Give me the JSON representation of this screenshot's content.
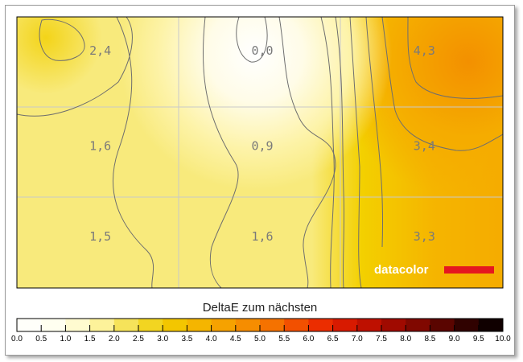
{
  "chart_data": {
    "type": "heatmap",
    "title": "",
    "legend_title": "DeltaE zum nächsten",
    "colorbar_ticks": [
      "0.0",
      "0.5",
      "1.0",
      "1.5",
      "2.0",
      "2.5",
      "3.0",
      "3.5",
      "4.0",
      "4.5",
      "5.0",
      "5.5",
      "6.0",
      "6.5",
      "7.0",
      "7.5",
      "8.0",
      "8.5",
      "9.0",
      "9.5",
      "10.0"
    ],
    "colorbar_colors": [
      "#fffffa",
      "#fffff0",
      "#fffbd0",
      "#fdf29a",
      "#f6e35a",
      "#f2d521",
      "#f3c600",
      "#f5b500",
      "#f6a200",
      "#f68d00",
      "#f57200",
      "#f25000",
      "#eb2d00",
      "#d81a00",
      "#be1000",
      "#a00a00",
      "#800800",
      "#5a0500",
      "#300200",
      "#100000"
    ],
    "grid": {
      "rows": 3,
      "cols": 3
    },
    "cells": [
      [
        "2,4",
        "0,0",
        "4,3"
      ],
      [
        "1,6",
        "0,9",
        "3,4"
      ],
      [
        "1,5",
        "1,6",
        "3,3"
      ]
    ],
    "values": [
      [
        2.4,
        0.0,
        4.3
      ],
      [
        1.6,
        0.9,
        3.4
      ],
      [
        1.5,
        1.6,
        3.3
      ]
    ],
    "brand": "datacolor"
  }
}
